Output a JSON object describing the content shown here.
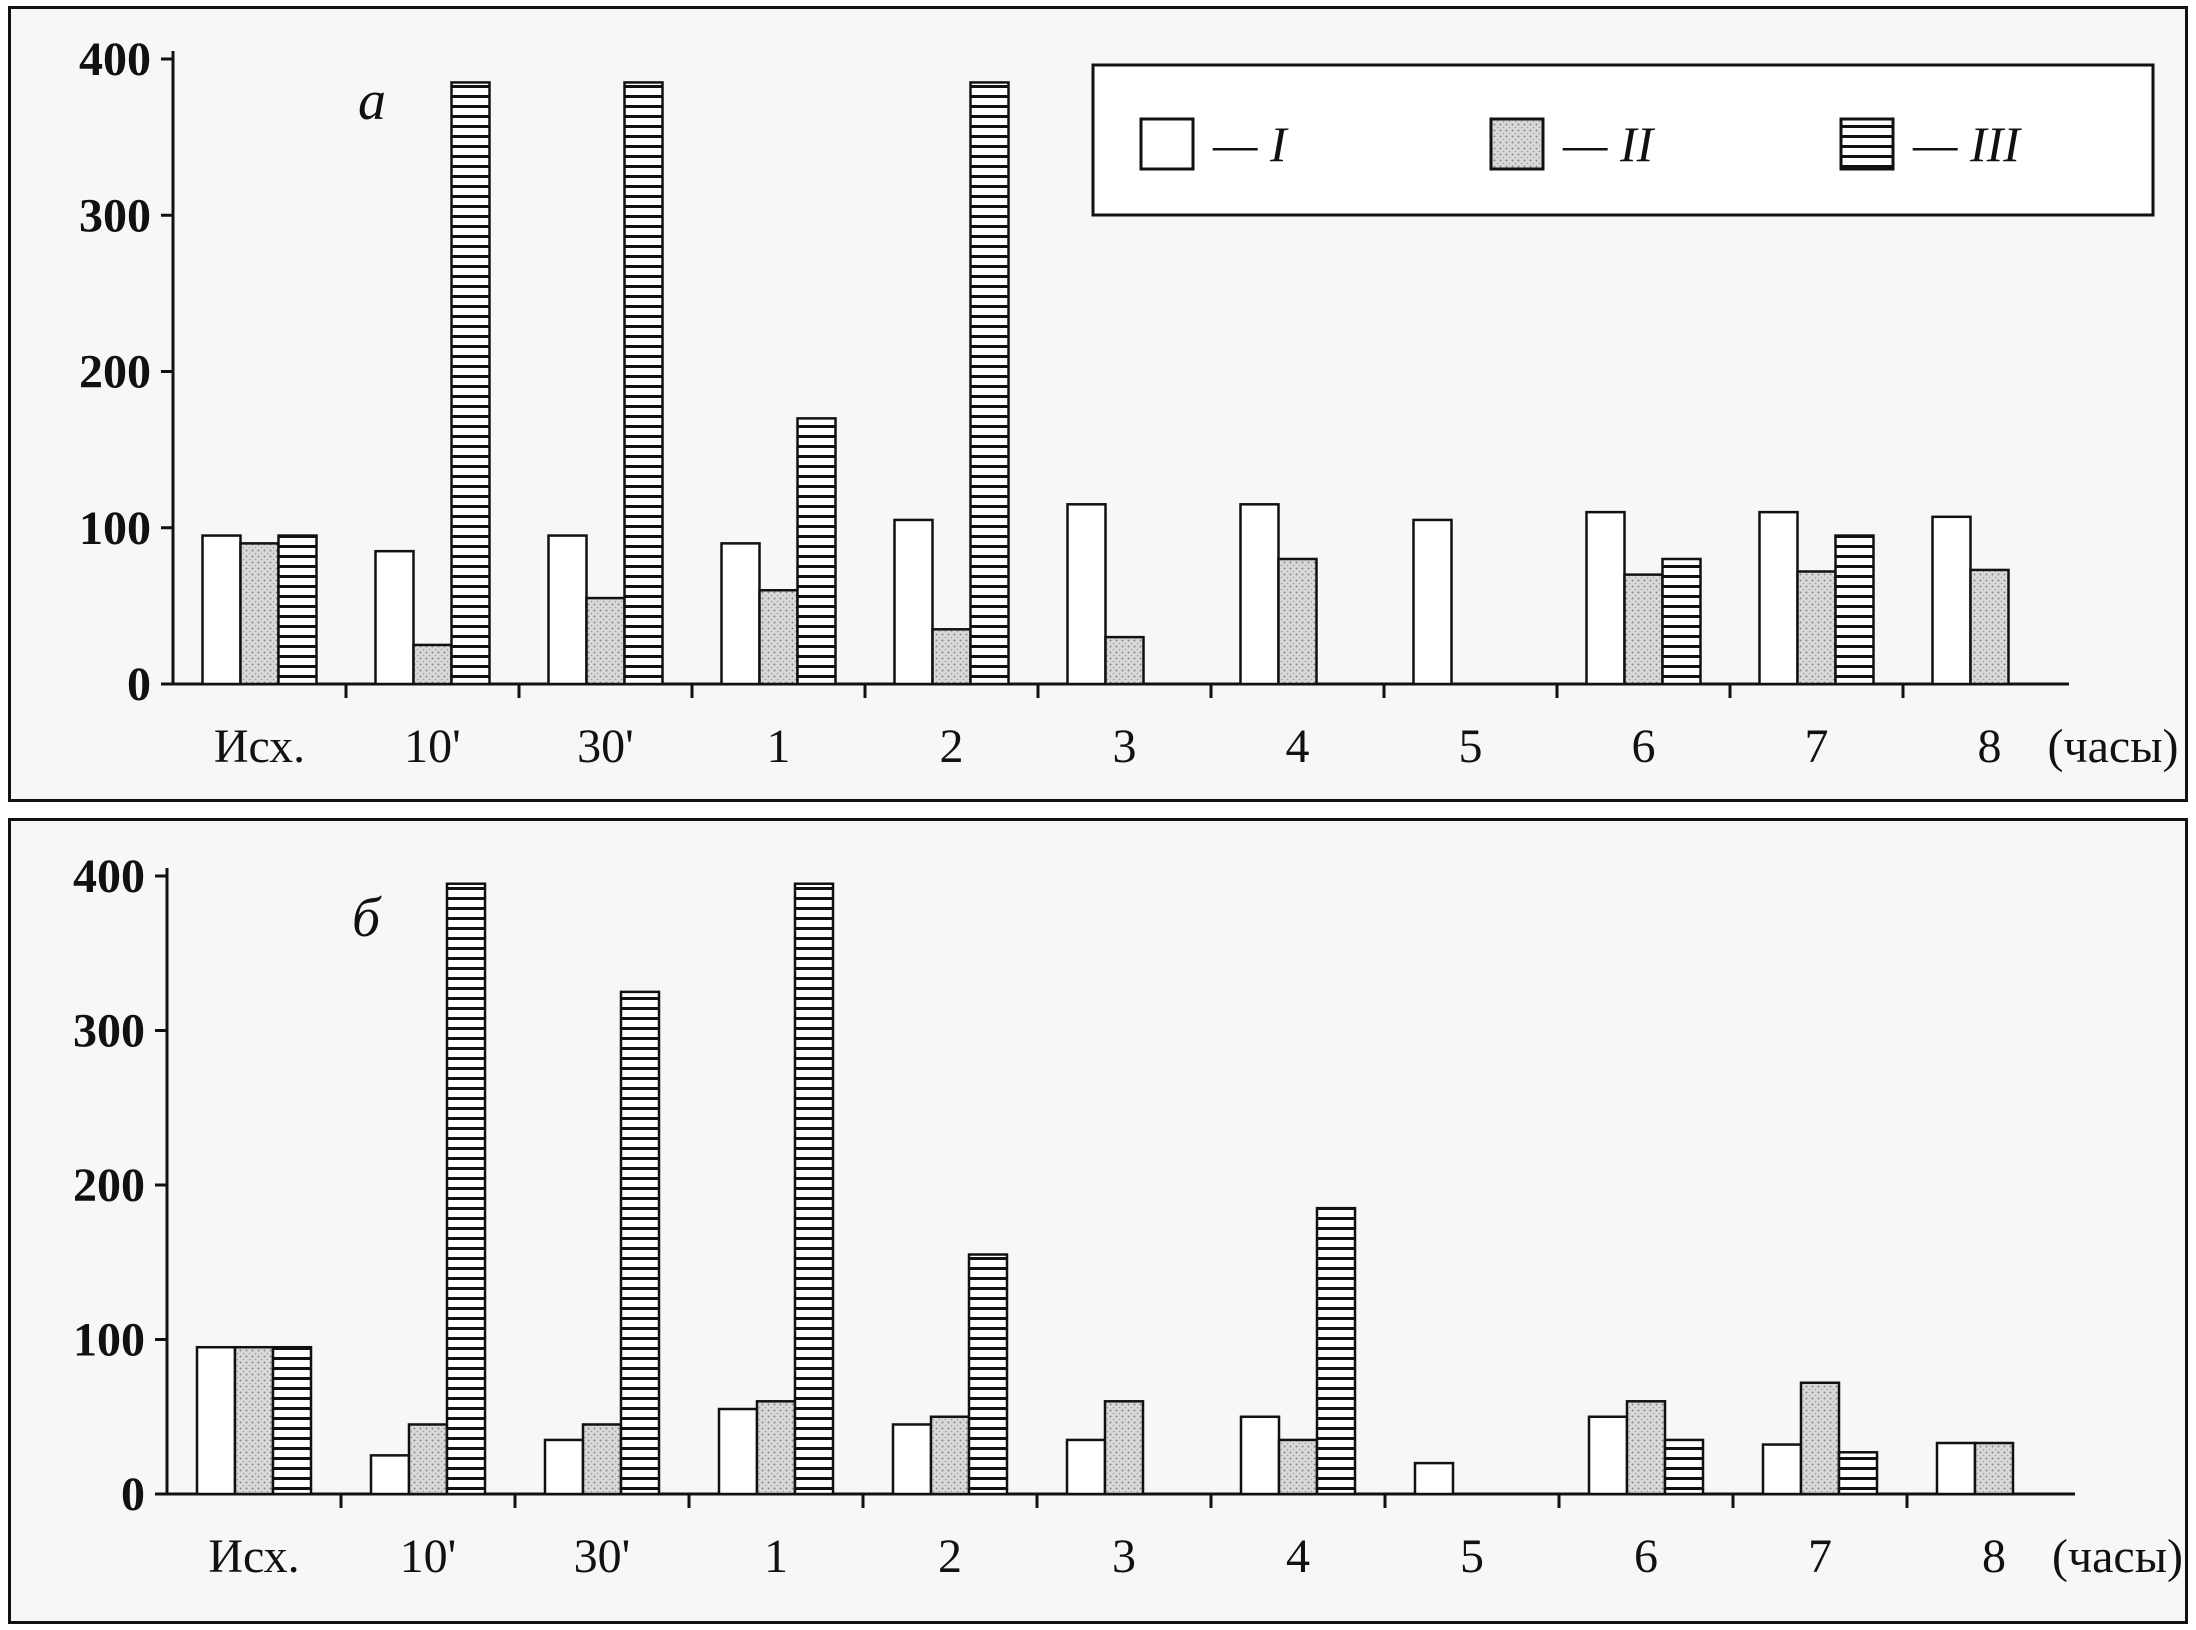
{
  "chart_data": [
    {
      "type": "bar",
      "panel_label": "a",
      "categories": [
        "Исх.",
        "10'",
        "30'",
        "1",
        "2",
        "3",
        "4",
        "5",
        "6",
        "7",
        "8"
      ],
      "x_unit_label": "(часы)",
      "ylim": [
        0,
        400
      ],
      "yticks": [
        "0",
        "100",
        "200",
        "300",
        "400"
      ],
      "series": [
        {
          "name": "I",
          "pattern": "white",
          "values": [
            95,
            85,
            95,
            90,
            105,
            115,
            115,
            105,
            110,
            110,
            107
          ]
        },
        {
          "name": "II",
          "pattern": "stippled",
          "values": [
            90,
            25,
            55,
            60,
            35,
            30,
            80,
            null,
            70,
            72,
            73
          ]
        },
        {
          "name": "III",
          "pattern": "horizontal",
          "values": [
            95,
            385,
            385,
            170,
            385,
            null,
            null,
            null,
            80,
            95,
            null
          ]
        }
      ],
      "legend": {
        "placement": "top-right",
        "dash": "—",
        "items": [
          "I",
          "II",
          "III"
        ]
      }
    },
    {
      "type": "bar",
      "panel_label": "б",
      "categories": [
        "Исх.",
        "10'",
        "30'",
        "1",
        "2",
        "3",
        "4",
        "5",
        "6",
        "7",
        "8"
      ],
      "x_unit_label": "(часы)",
      "ylim": [
        0,
        400
      ],
      "yticks": [
        "0",
        "100",
        "200",
        "300",
        "400"
      ],
      "series": [
        {
          "name": "I",
          "pattern": "white",
          "values": [
            95,
            25,
            35,
            55,
            45,
            35,
            50,
            20,
            50,
            32,
            33
          ]
        },
        {
          "name": "II",
          "pattern": "stippled",
          "values": [
            95,
            45,
            45,
            60,
            50,
            60,
            35,
            null,
            60,
            72,
            33
          ]
        },
        {
          "name": "III",
          "pattern": "horizontal",
          "values": [
            95,
            395,
            325,
            395,
            155,
            null,
            185,
            null,
            35,
            27,
            null
          ]
        }
      ]
    }
  ]
}
